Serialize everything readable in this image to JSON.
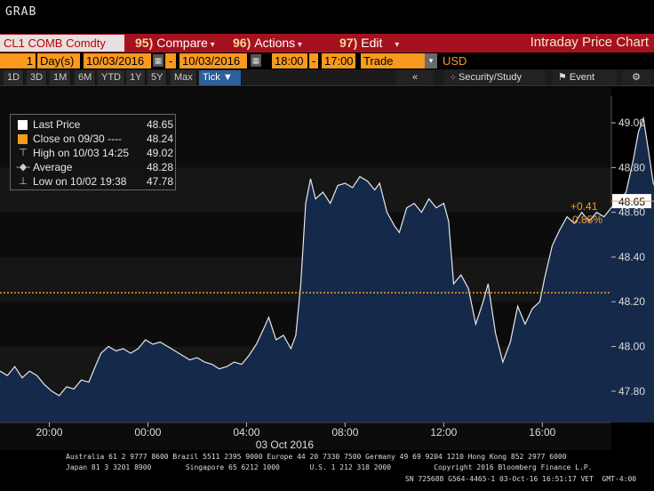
{
  "window": {
    "title": "GRAB"
  },
  "toolbar": {
    "security": "CL1 COMB Comdty",
    "compare": {
      "num": "95)",
      "label": "Compare"
    },
    "actions": {
      "num": "96)",
      "label": "Actions"
    },
    "edit": {
      "num": "97)",
      "label": "Edit"
    },
    "title": "Intraday Price Chart"
  },
  "params": {
    "period_n": "1",
    "period_unit": "Day(s)",
    "start_date": "10/03/2016",
    "end_date": "10/03/2016",
    "start_time": "18:00",
    "end_time": "17:00",
    "field": "Trade",
    "currency": "USD"
  },
  "tabs": [
    "1D",
    "3D",
    "1M",
    "6M",
    "YTD",
    "1Y",
    "5Y",
    "Max",
    "Tick"
  ],
  "tools": {
    "back": "«",
    "security_study": "Security/Study",
    "event": "Event",
    "settings": "gear-icon"
  },
  "legend": [
    {
      "label": "Last Price",
      "value": "48.65",
      "color": "#ffffff",
      "icon": "square"
    },
    {
      "label": "Close on 09/30  ----",
      "value": "48.24",
      "color": "#f79a1e",
      "icon": "square"
    },
    {
      "label": "High on 10/03 14:25",
      "value": "49.02",
      "color": "#cccccc",
      "icon": "high-marker"
    },
    {
      "label": "Average",
      "value": "48.28",
      "color": "#cccccc",
      "icon": "average-marker"
    },
    {
      "label": "Low on 10/02 19:38",
      "value": "47.78",
      "color": "#cccccc",
      "icon": "low-marker"
    }
  ],
  "chart_data": {
    "type": "area",
    "x_unit": "hours since 18:00 on 10/02/2016",
    "y": [
      [
        0,
        47.89
      ],
      [
        0.3,
        47.87
      ],
      [
        0.6,
        47.91
      ],
      [
        0.9,
        47.86
      ],
      [
        1.2,
        47.89
      ],
      [
        1.5,
        47.87
      ],
      [
        1.8,
        47.83
      ],
      [
        2.1,
        47.8
      ],
      [
        2.4,
        47.78
      ],
      [
        2.7,
        47.82
      ],
      [
        3.0,
        47.81
      ],
      [
        3.3,
        47.85
      ],
      [
        3.6,
        47.84
      ],
      [
        3.9,
        47.92
      ],
      [
        4.1,
        47.97
      ],
      [
        4.4,
        48.0
      ],
      [
        4.7,
        47.98
      ],
      [
        5.0,
        47.99
      ],
      [
        5.3,
        47.97
      ],
      [
        5.6,
        47.99
      ],
      [
        5.9,
        48.03
      ],
      [
        6.2,
        48.01
      ],
      [
        6.5,
        48.02
      ],
      [
        6.8,
        48.0
      ],
      [
        7.1,
        47.98
      ],
      [
        7.4,
        47.96
      ],
      [
        7.7,
        47.94
      ],
      [
        8.0,
        47.95
      ],
      [
        8.3,
        47.93
      ],
      [
        8.6,
        47.92
      ],
      [
        8.9,
        47.9
      ],
      [
        9.2,
        47.91
      ],
      [
        9.5,
        47.93
      ],
      [
        9.8,
        47.92
      ],
      [
        10.1,
        47.96
      ],
      [
        10.4,
        48.01
      ],
      [
        10.7,
        48.08
      ],
      [
        10.9,
        48.13
      ],
      [
        11.2,
        48.03
      ],
      [
        11.5,
        48.05
      ],
      [
        11.8,
        47.99
      ],
      [
        12.0,
        48.05
      ],
      [
        12.2,
        48.28
      ],
      [
        12.4,
        48.64
      ],
      [
        12.6,
        48.75
      ],
      [
        12.8,
        48.66
      ],
      [
        13.1,
        48.69
      ],
      [
        13.4,
        48.64
      ],
      [
        13.7,
        48.72
      ],
      [
        14.0,
        48.73
      ],
      [
        14.3,
        48.71
      ],
      [
        14.6,
        48.76
      ],
      [
        14.9,
        48.74
      ],
      [
        15.2,
        48.7
      ],
      [
        15.4,
        48.73
      ],
      [
        15.7,
        48.6
      ],
      [
        16.0,
        48.54
      ],
      [
        16.2,
        48.51
      ],
      [
        16.5,
        48.62
      ],
      [
        16.8,
        48.64
      ],
      [
        17.1,
        48.6
      ],
      [
        17.4,
        48.66
      ],
      [
        17.7,
        48.62
      ],
      [
        18.0,
        48.64
      ],
      [
        18.2,
        48.56
      ],
      [
        18.4,
        48.28
      ],
      [
        18.7,
        48.32
      ],
      [
        19.0,
        48.26
      ],
      [
        19.3,
        48.1
      ],
      [
        19.6,
        48.2
      ],
      [
        19.8,
        48.28
      ],
      [
        20.1,
        48.06
      ],
      [
        20.4,
        47.93
      ],
      [
        20.7,
        48.02
      ],
      [
        21.0,
        48.18
      ],
      [
        21.3,
        48.1
      ],
      [
        21.6,
        48.17
      ],
      [
        21.9,
        48.2
      ],
      [
        22.1,
        48.31
      ],
      [
        22.4,
        48.45
      ],
      [
        22.7,
        48.52
      ],
      [
        23.0,
        48.58
      ],
      [
        23.3,
        48.55
      ],
      [
        23.6,
        48.6
      ],
      [
        23.9,
        48.56
      ],
      [
        24.2,
        48.6
      ],
      [
        24.5,
        48.58
      ],
      [
        24.8,
        48.62
      ],
      [
        25.1,
        48.65
      ],
      [
        25.4,
        48.69
      ],
      [
        25.7,
        48.84
      ],
      [
        25.9,
        48.96
      ],
      [
        26.1,
        49.02
      ],
      [
        26.3,
        48.88
      ],
      [
        26.5,
        48.73
      ],
      [
        26.8,
        48.67
      ],
      [
        27.1,
        48.68
      ],
      [
        27.4,
        48.63
      ],
      [
        27.7,
        48.66
      ],
      [
        28.0,
        48.69
      ],
      [
        28.3,
        48.67
      ],
      [
        28.6,
        48.68
      ],
      [
        28.9,
        48.66
      ],
      [
        29.2,
        48.67
      ],
      [
        29.5,
        48.66
      ],
      [
        29.7,
        48.65
      ]
    ],
    "close_line": 48.24,
    "ylim": [
      47.66,
      49.08
    ],
    "yticks": [
      "47.80",
      "48.00",
      "48.20",
      "48.40",
      "48.60",
      "48.80",
      "49.00"
    ],
    "xticks": [
      {
        "x": 2,
        "label": "20:00"
      },
      {
        "x": 6,
        "label": "00:00"
      },
      {
        "x": 10,
        "label": "04:00"
      },
      {
        "x": 14,
        "label": "08:00"
      },
      {
        "x": 18,
        "label": "12:00"
      },
      {
        "x": 22,
        "label": "16:00"
      }
    ],
    "xlim": [
      0,
      24.8
    ],
    "date_label": "03 Oct 2016",
    "last_price_label": "48.65",
    "change_abs": "+0.41",
    "change_pct": "0.85%",
    "colors": {
      "fill": "#15294a",
      "line": "#e8e8e8",
      "close": "#f79a1e",
      "last_box": "#ffffff"
    }
  },
  "footer": {
    "line1": "Australia 61 2 9777 8600 Brazil 5511 2395 9000 Europe 44 20 7330 7500 Germany 49 69 9204 1210 Hong Kong 852 2977 6000",
    "line2": "Japan 81 3 3201 8900        Singapore 65 6212 1000       U.S. 1 212 318 2000          Copyright 2016 Bloomberg Finance L.P.",
    "line3": "SN 725688 G564-4465-1 03-Oct-16 16:51:17 VET  GMT-4:00"
  }
}
